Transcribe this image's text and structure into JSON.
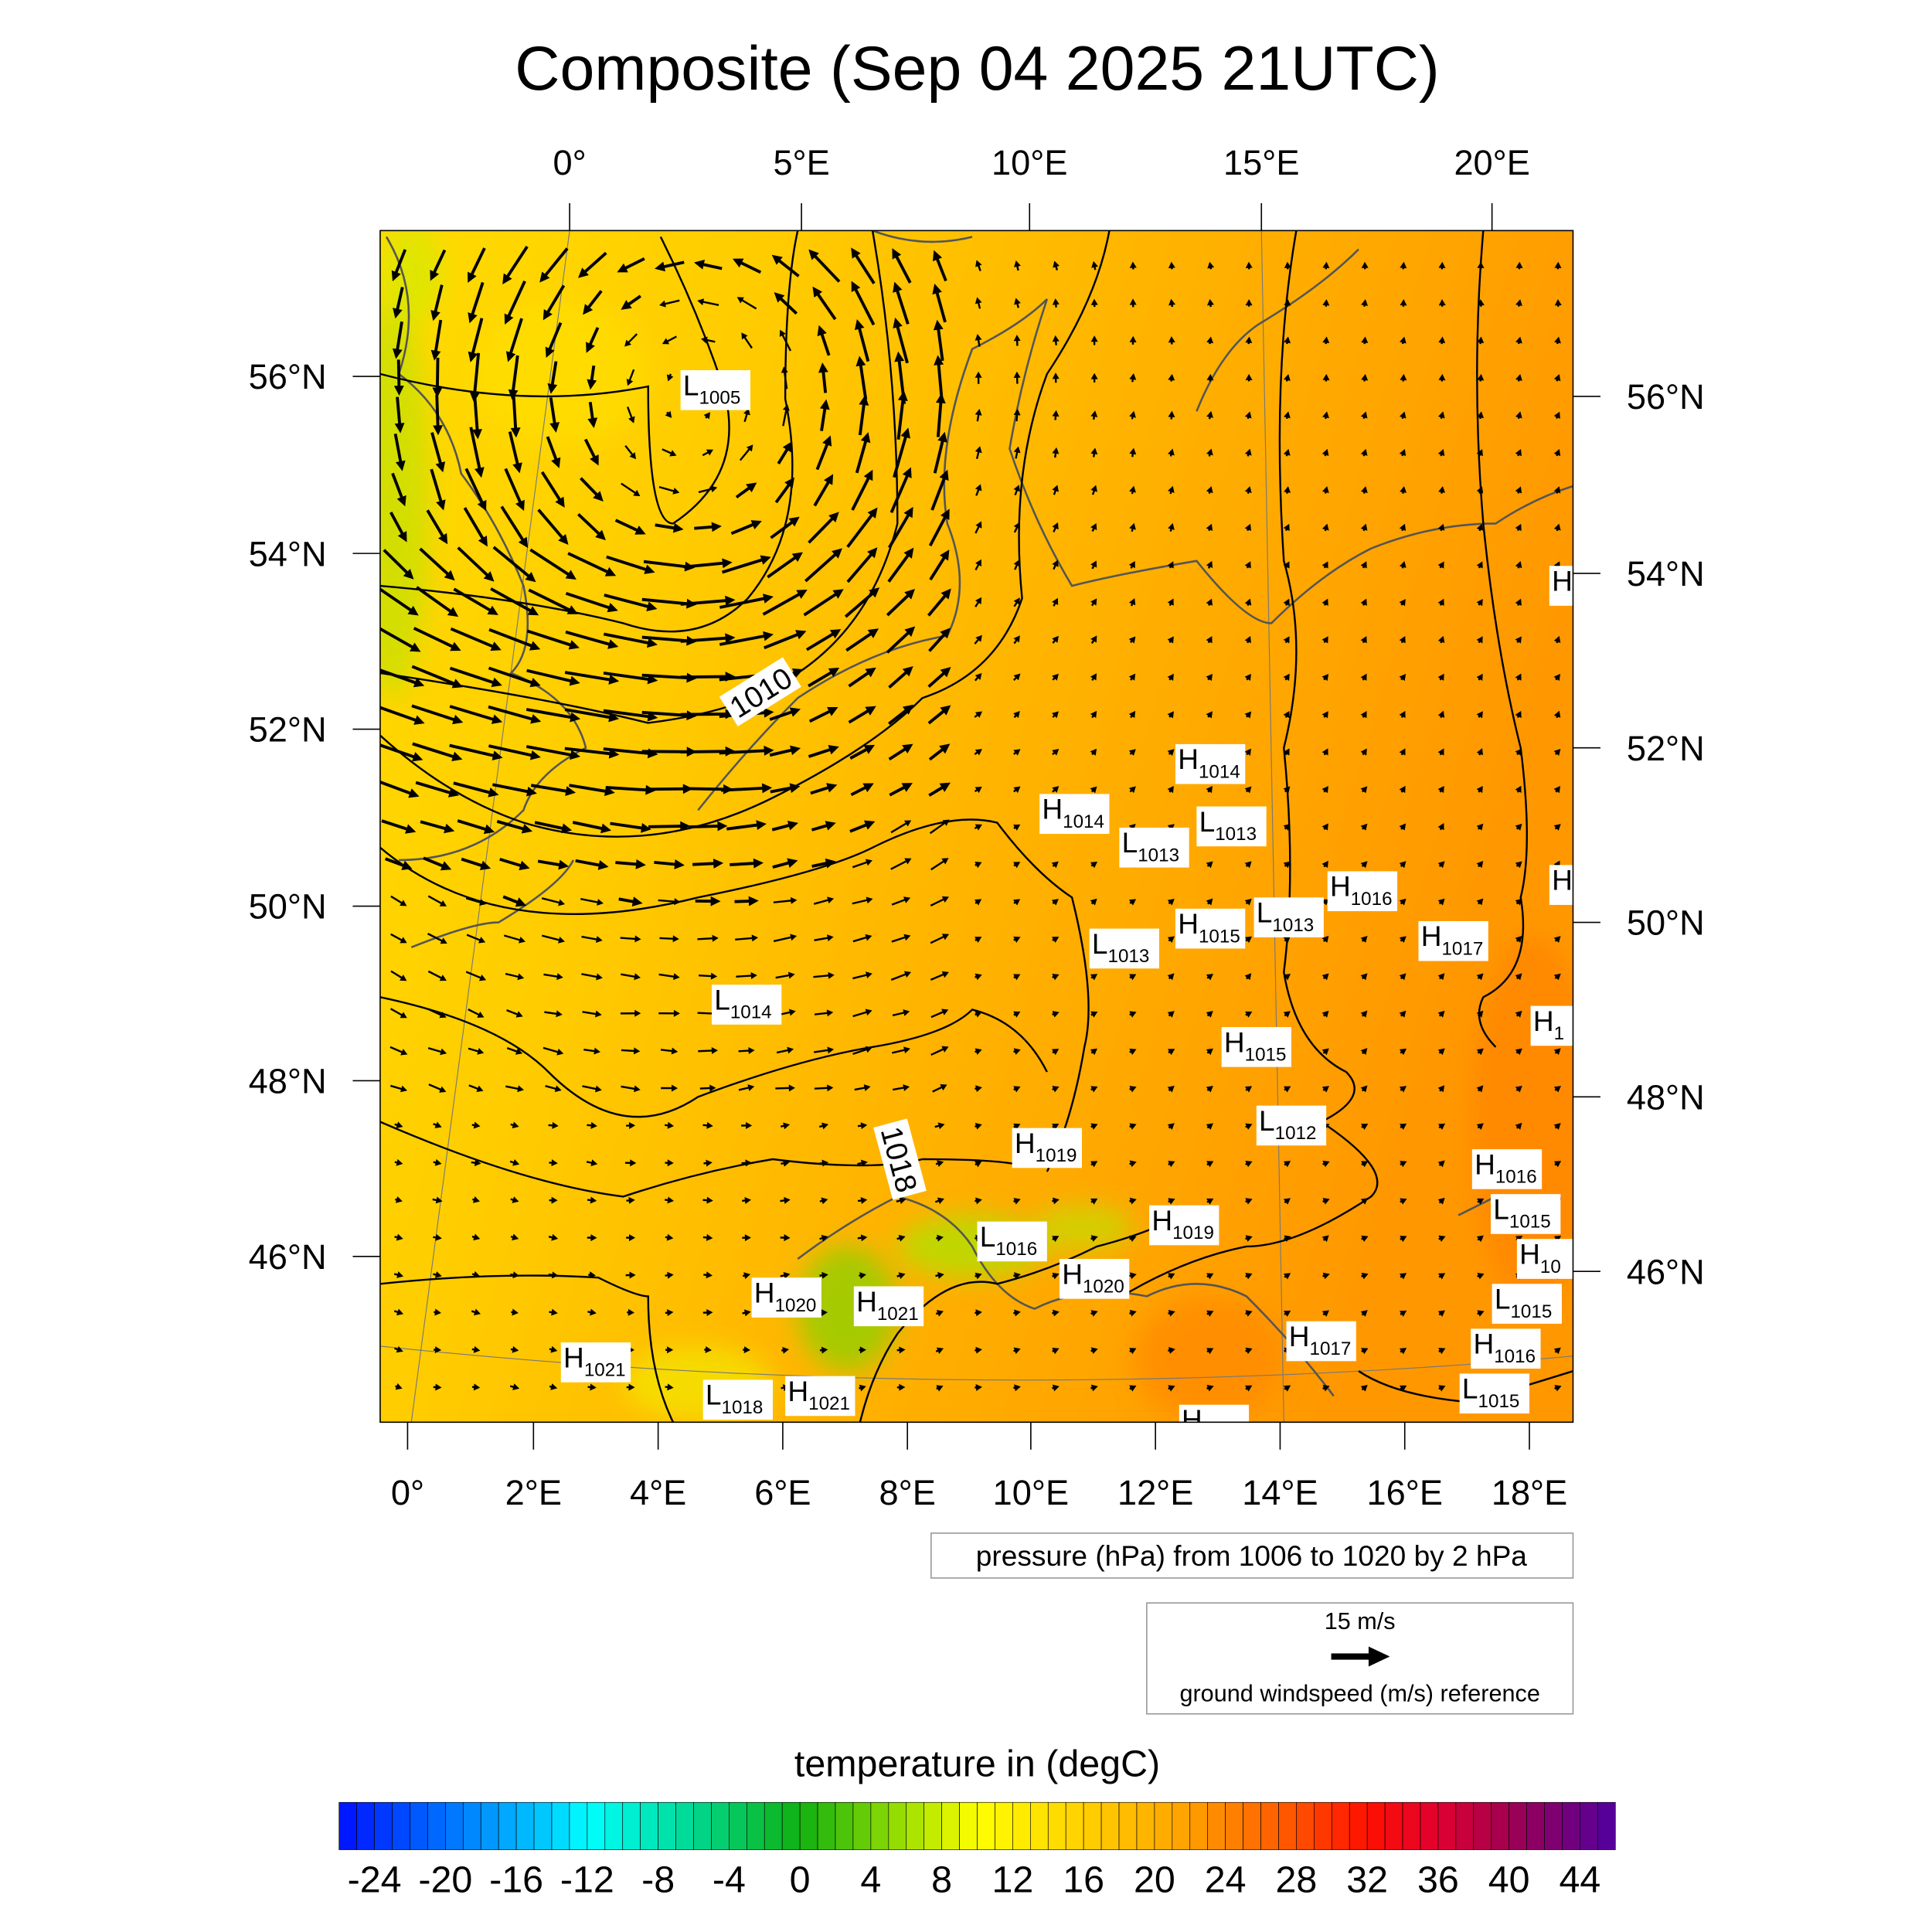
{
  "chart_data": {
    "type": "heatmap",
    "title": "Composite (Sep 04 2025 21UTC)",
    "top_lon_labels": [
      "0°",
      "5°E",
      "10°E",
      "15°E",
      "20°E"
    ],
    "left_lat_labels": [
      "56°N",
      "54°N",
      "52°N",
      "50°N",
      "48°N",
      "46°N"
    ],
    "right_lat_labels": [
      "56°N",
      "54°N",
      "52°N",
      "50°N",
      "48°N",
      "46°N"
    ],
    "bottom_lon_labels": [
      "0°",
      "2°E",
      "4°E",
      "6°E",
      "8°E",
      "10°E",
      "12°E",
      "14°E",
      "16°E",
      "18°E"
    ],
    "pressure_label": "pressure (hPa) from 1006 to 1020 by 2 hPa",
    "wind_reference": {
      "speed_label": "15 m/s",
      "caption": "ground windspeed (m/s) reference",
      "speed": 15
    },
    "colorbar": {
      "title": "temperature in (degC)",
      "min": -26,
      "max": 46,
      "step": 1,
      "tick_labels": [
        "-24",
        "-20",
        "-16",
        "-12",
        "-8",
        "-4",
        "0",
        "4",
        "8",
        "12",
        "16",
        "20",
        "24",
        "28",
        "32",
        "36",
        "40",
        "44"
      ]
    },
    "contour_labels": [
      "1010",
      "1018"
    ],
    "pressure_centers": [
      {
        "t": "L",
        "v": "1005"
      },
      {
        "t": "H",
        "v": "1014"
      },
      {
        "t": "H",
        "v": "1014"
      },
      {
        "t": "L",
        "v": "1013"
      },
      {
        "t": "L",
        "v": "1013"
      },
      {
        "t": "H",
        "v": "1016"
      },
      {
        "t": "H",
        "v": ""
      },
      {
        "t": "L",
        "v": "1013"
      },
      {
        "t": "H",
        "v": "1015"
      },
      {
        "t": "L",
        "v": "1013"
      },
      {
        "t": "H",
        "v": "1017"
      },
      {
        "t": "L",
        "v": "1014"
      },
      {
        "t": "H",
        "v": "1015"
      },
      {
        "t": "H",
        "v": "1"
      },
      {
        "t": "L",
        "v": "1012"
      },
      {
        "t": "H",
        "v": "1019"
      },
      {
        "t": "H",
        "v": "1016"
      },
      {
        "t": "L",
        "v": "1015"
      },
      {
        "t": "H",
        "v": "1019"
      },
      {
        "t": "L",
        "v": "1016"
      },
      {
        "t": "H",
        "v": "1020"
      },
      {
        "t": "H",
        "v": "10"
      },
      {
        "t": "L",
        "v": "1015"
      },
      {
        "t": "H",
        "v": "1020"
      },
      {
        "t": "H",
        "v": "1021"
      },
      {
        "t": "H",
        "v": "1016"
      },
      {
        "t": "H",
        "v": "1017"
      },
      {
        "t": "H",
        "v": "1021"
      },
      {
        "t": "L",
        "v": "1015"
      },
      {
        "t": "L",
        "v": "1018"
      },
      {
        "t": "H",
        "v": "1021"
      },
      {
        "t": "H",
        "v": "1014"
      },
      {
        "t": "H",
        "v": ""
      }
    ]
  }
}
